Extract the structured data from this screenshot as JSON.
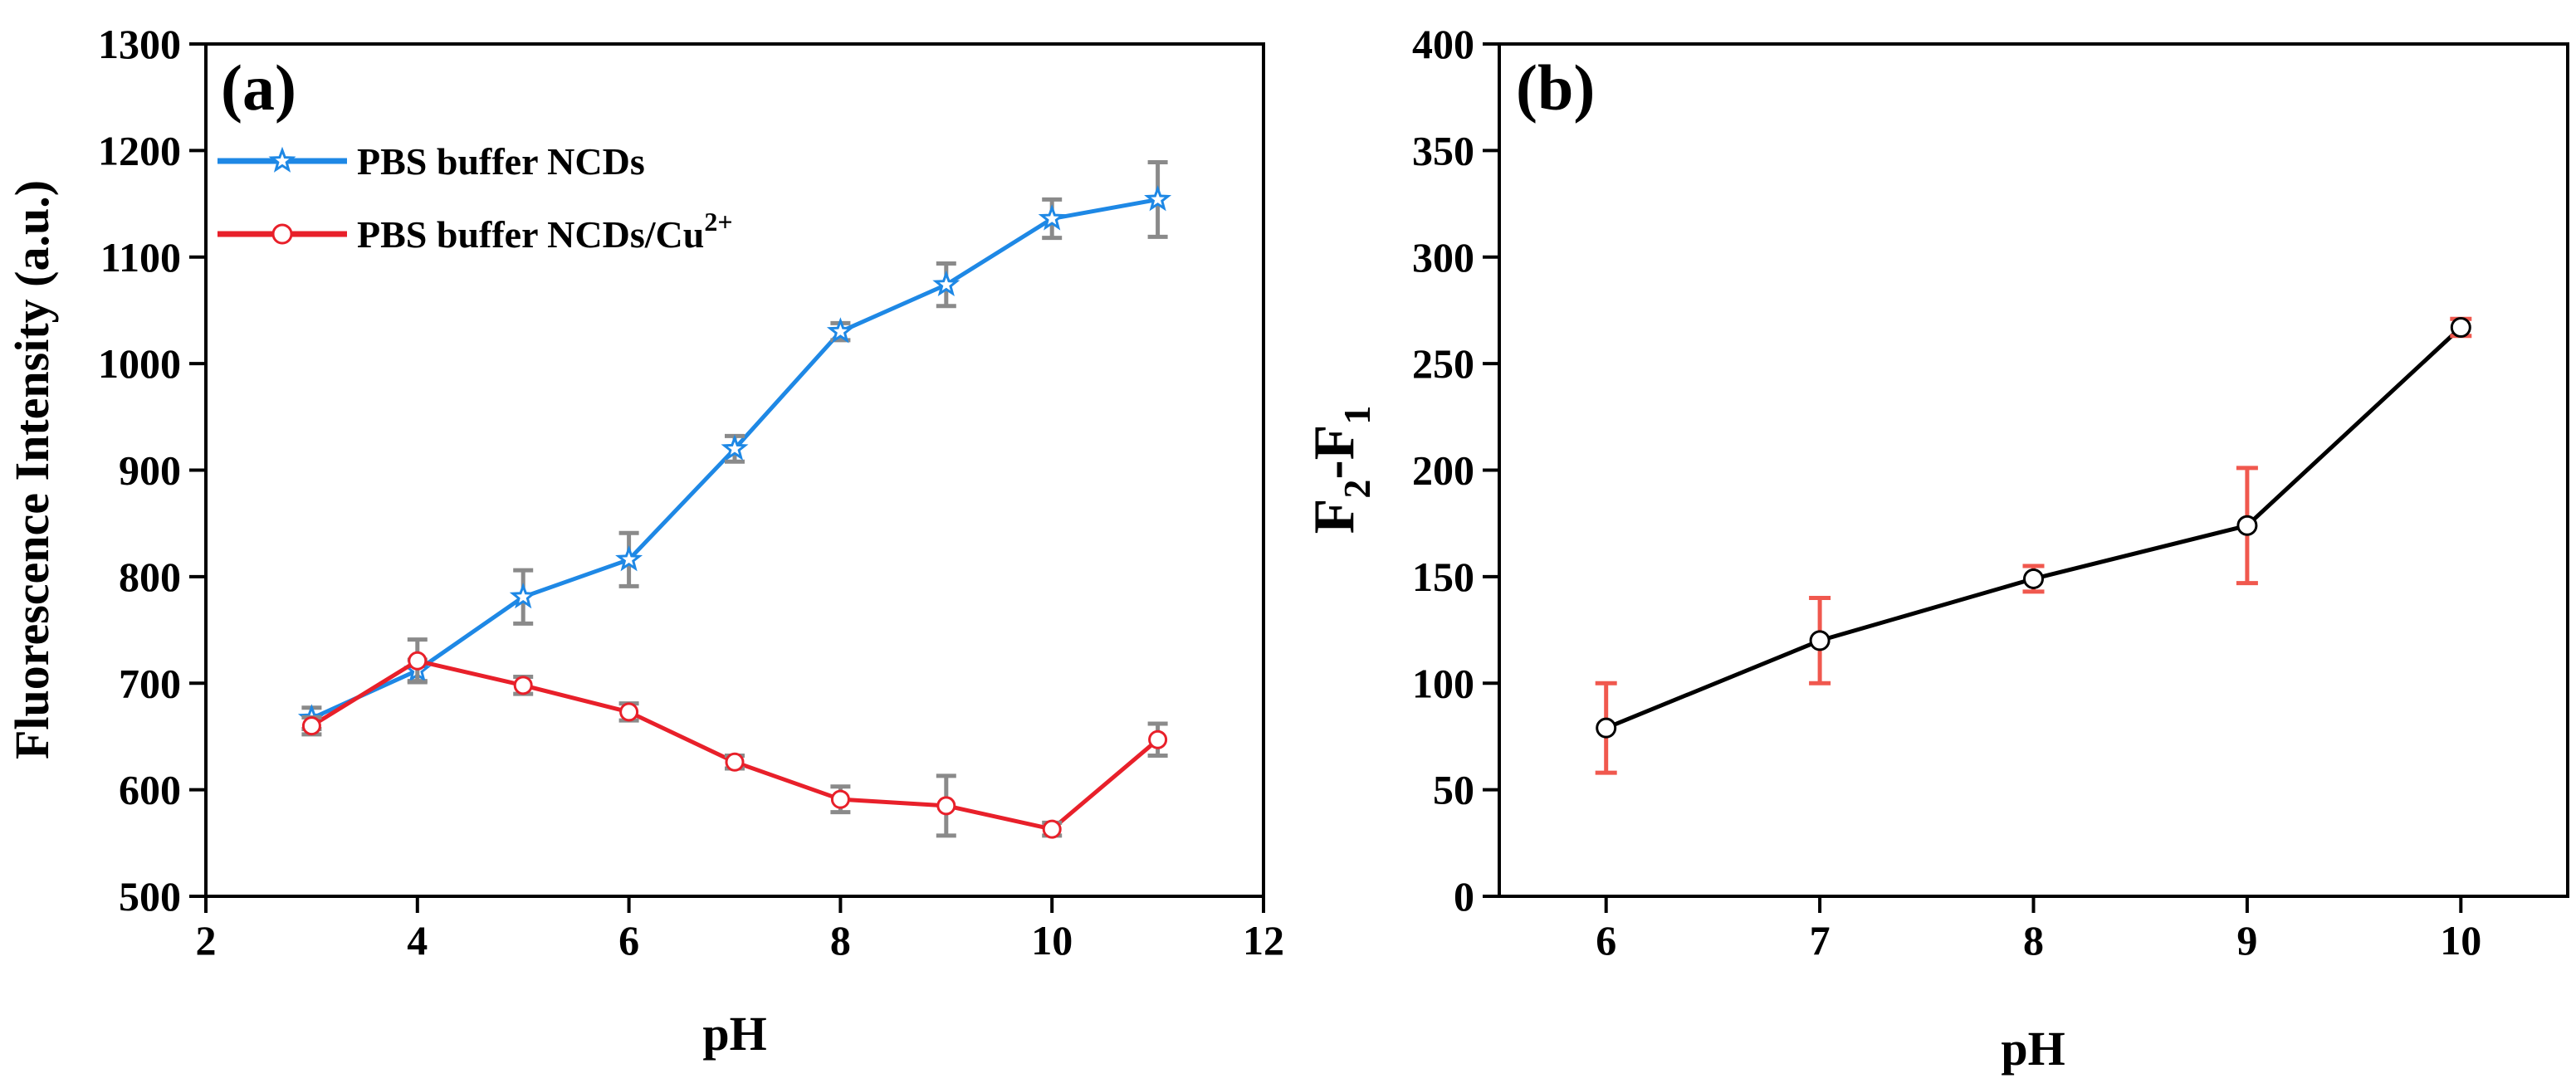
{
  "chart_data": [
    {
      "panel": "(a)",
      "type": "line",
      "xlabel": "pH",
      "ylabel": "Fluorescence Intensity (a.u.)",
      "xlim": [
        2,
        12
      ],
      "ylim": [
        500,
        1300
      ],
      "xticks": [
        2,
        4,
        6,
        8,
        10,
        12
      ],
      "yticks": [
        500,
        600,
        700,
        800,
        900,
        1000,
        1100,
        1200,
        1300
      ],
      "legend_position": "top-left",
      "series": [
        {
          "name": "PBS buffer NCDs",
          "color": "#1E88E5",
          "marker": "star",
          "x": [
            3,
            4,
            5,
            6,
            7,
            8,
            9,
            10,
            11
          ],
          "values": [
            667,
            712,
            781,
            816,
            920,
            1030,
            1074,
            1136,
            1154
          ],
          "errors": [
            10,
            10,
            25,
            25,
            12,
            8,
            20,
            18,
            35
          ],
          "error_color": "#8a8a8a"
        },
        {
          "name": "PBS buffer NCDs/Cu",
          "name_superscript": "2+",
          "color": "#E8202A",
          "marker": "circle",
          "x": [
            3,
            4,
            5,
            6,
            7,
            8,
            9,
            10,
            11
          ],
          "values": [
            660,
            721,
            698,
            673,
            626,
            591,
            585,
            563,
            647
          ],
          "errors": [
            8,
            20,
            8,
            8,
            6,
            12,
            28,
            6,
            15
          ],
          "error_color": "#8a8a8a"
        }
      ]
    },
    {
      "panel": "(b)",
      "type": "line",
      "xlabel": "pH",
      "ylabel_parts": [
        "F",
        "2",
        "-F",
        "1"
      ],
      "xlim": [
        5.5,
        10.5
      ],
      "ylim": [
        0,
        400
      ],
      "xticks": [
        6,
        7,
        8,
        9,
        10
      ],
      "yticks": [
        0,
        50,
        100,
        150,
        200,
        250,
        300,
        350,
        400
      ],
      "series": [
        {
          "name": "F2-F1",
          "color": "#000000",
          "marker": "circle",
          "x": [
            6,
            7,
            8,
            9,
            10
          ],
          "values": [
            79,
            120,
            149,
            174,
            267
          ],
          "errors": [
            21,
            20,
            6,
            27,
            4
          ],
          "error_color": "#F0584E"
        }
      ]
    }
  ]
}
